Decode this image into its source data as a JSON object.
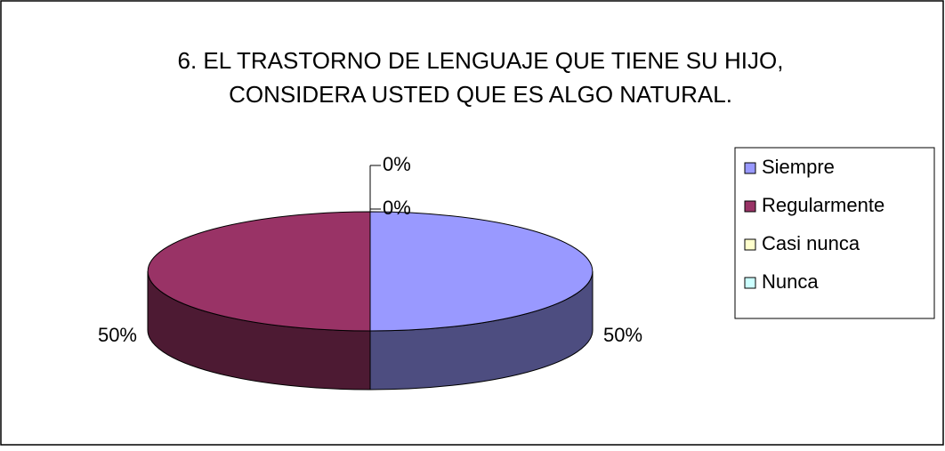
{
  "chart_data": {
    "type": "pie",
    "title": [
      "6. EL TRASTORNO DE LENGUAJE QUE TIENE SU HIJO,",
      "CONSIDERA USTED QUE ES ALGO NATURAL."
    ],
    "categories": [
      "Siempre",
      "Regularmente",
      "Casi nunca",
      "Nunca"
    ],
    "values": [
      50,
      50,
      0,
      0
    ],
    "value_labels": [
      "50%",
      "50%",
      "0%",
      "0%"
    ],
    "colors": [
      "#9999ff",
      "#993366",
      "#ffffcc",
      "#ccffff"
    ],
    "legend": "right"
  }
}
